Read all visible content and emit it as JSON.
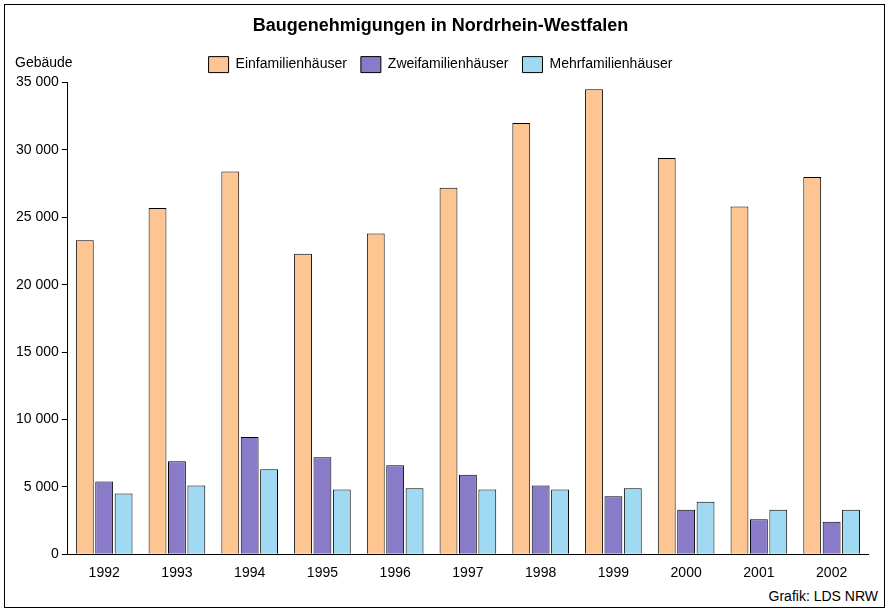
{
  "chart_data": {
    "type": "bar",
    "title": "Baugenehmigungen in Nordrhein-Westfalen",
    "y_label": "Gebäude",
    "source": "Grafik: LDS NRW",
    "categories": [
      "1992",
      "1993",
      "1994",
      "1995",
      "1996",
      "1997",
      "1998",
      "1999",
      "2000",
      "2001",
      "2002"
    ],
    "series": [
      {
        "name": "Einfamilienhäuser",
        "color": "#fdc592",
        "values": [
          23300,
          25700,
          28400,
          22300,
          23800,
          27200,
          32000,
          34500,
          29400,
          25800,
          28000
        ]
      },
      {
        "name": "Zweifamilienhäuser",
        "color": "#8a7bc9",
        "values": [
          5400,
          6900,
          8700,
          7200,
          6600,
          5900,
          5100,
          4300,
          3300,
          2600,
          2400
        ]
      },
      {
        "name": "Mehrfamilienhäuser",
        "color": "#9fd9f2",
        "values": [
          4500,
          5100,
          6300,
          4800,
          4900,
          4800,
          4800,
          4900,
          3900,
          3300,
          3300
        ]
      }
    ],
    "ylim": [
      0,
      35000
    ],
    "yticks": [
      0,
      {
        "value": 5000,
        "label": "5 000"
      },
      {
        "value": 10000,
        "label": "10 000"
      },
      {
        "value": 15000,
        "label": "15 000"
      },
      {
        "value": 20000,
        "label": "20 000"
      },
      {
        "value": 25000,
        "label": "25 000"
      },
      {
        "value": 30000,
        "label": "30 000"
      },
      {
        "value": 35000,
        "label": "35 000"
      }
    ],
    "grid": false,
    "legend": "top"
  }
}
